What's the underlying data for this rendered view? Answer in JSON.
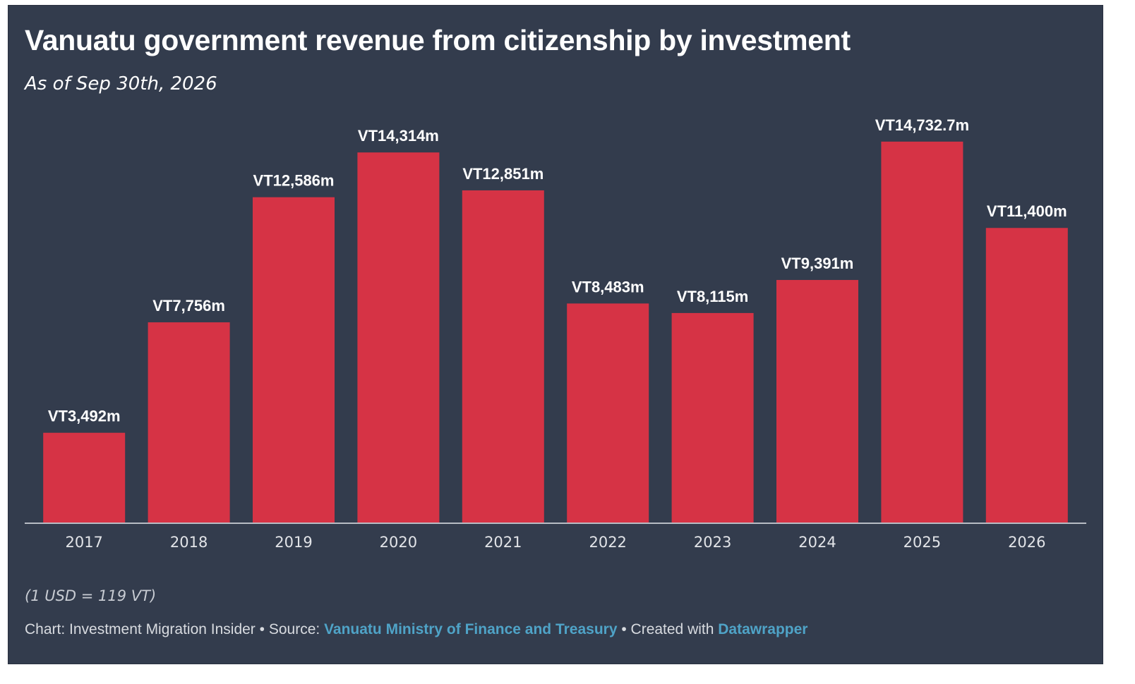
{
  "title": "Vanuatu government revenue from citizenship by investment",
  "subtitle": "As of Sep 30th, 2026",
  "note": "(1 USD = 119 VT)",
  "footer": {
    "chart_prefix": "Chart: Investment Migration Insider",
    "separator": " • ",
    "source_prefix": "Source: ",
    "source_link": "Vanuatu Ministry of Finance and Treasury",
    "created_prefix": "Created with ",
    "created_link": "Datawrapper"
  },
  "colors": {
    "background": "#333c4d",
    "bar": "#d63345",
    "link": "#4fa3c7",
    "text": "#ffffff"
  },
  "chart_data": {
    "type": "bar",
    "title": "Vanuatu government revenue from citizenship by investment",
    "subtitle": "As of Sep 30th, 2026",
    "categories": [
      "2017",
      "2018",
      "2019",
      "2020",
      "2021",
      "2022",
      "2023",
      "2024",
      "2025",
      "2026"
    ],
    "values": [
      3492,
      7756,
      12586,
      14314,
      12851,
      8483,
      8115,
      9391,
      14732.7,
      11400
    ],
    "labels": [
      "VT3,492m",
      "VT7,756m",
      "VT12,586m",
      "VT14,314m",
      "VT12,851m",
      "VT8,483m",
      "VT8,115m",
      "VT9,391m",
      "VT14,732.7m",
      "VT11,400m"
    ],
    "xlabel": "",
    "ylabel": "",
    "ylim": [
      0,
      15000
    ],
    "grid": false,
    "legend": "none"
  }
}
